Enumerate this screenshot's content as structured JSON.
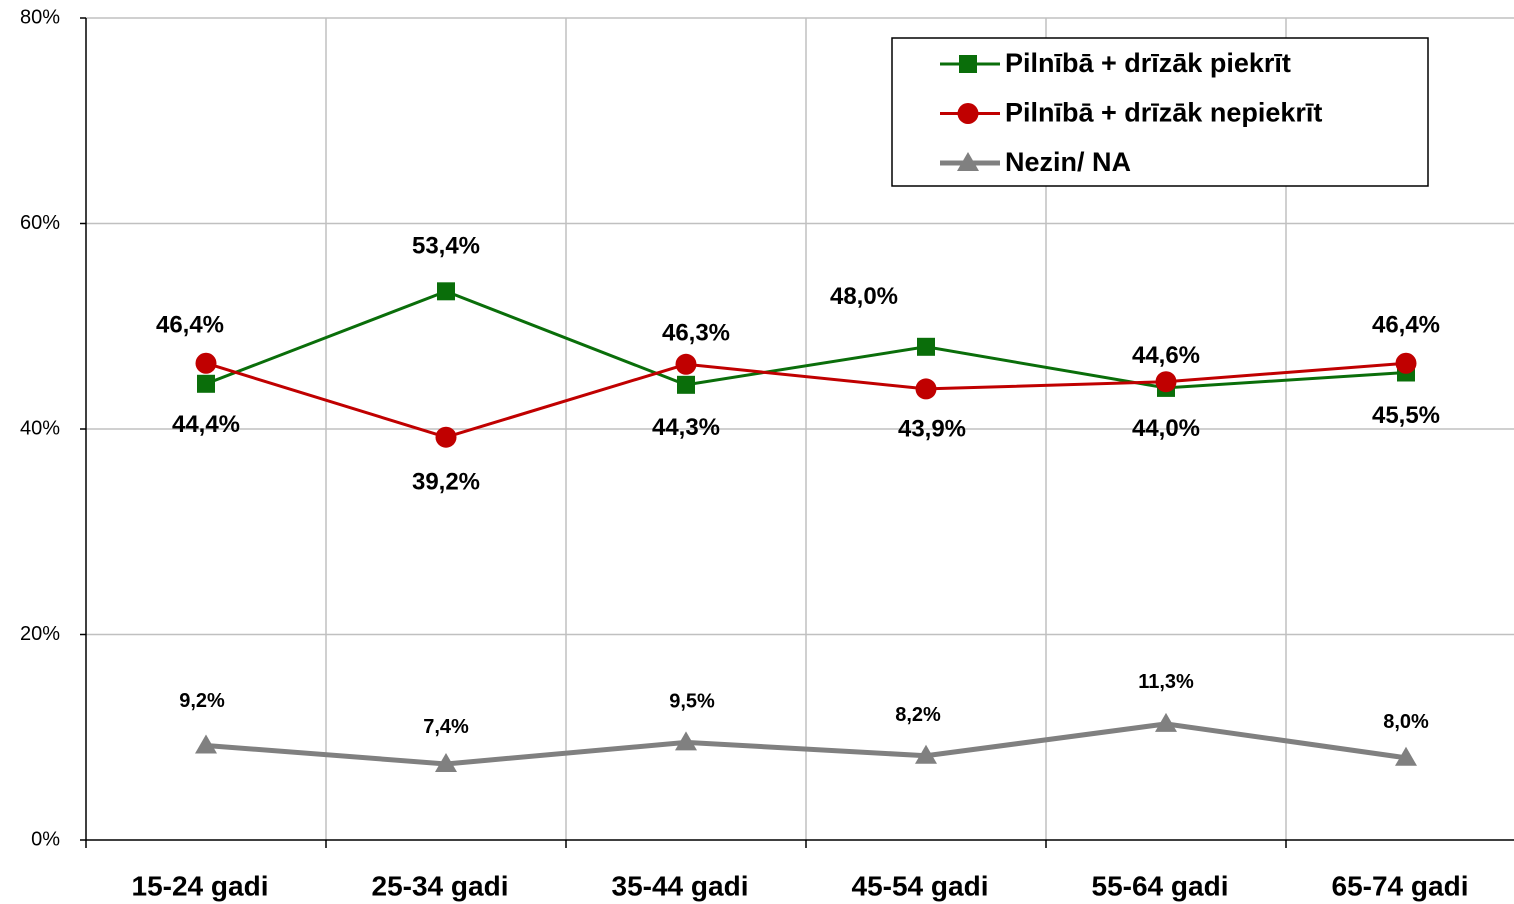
{
  "chart_data": {
    "type": "line",
    "categories": [
      "15-24 gadi",
      "25-34 gadi",
      "35-44 gadi",
      "45-54 gadi",
      "55-64 gadi",
      "65-74 gadi"
    ],
    "series": [
      {
        "name": "Pilnībā + drīzāk piekrīt",
        "color": "#0a6e0a",
        "marker": "square",
        "values": [
          44.4,
          53.4,
          44.3,
          48.0,
          44.0,
          45.5
        ],
        "value_labels": [
          "44,4%",
          "53,4%",
          "44,3%",
          "48,0%",
          "44,0%",
          "45,5%"
        ]
      },
      {
        "name": "Pilnībā + drīzāk nepiekrīt",
        "color": "#c00000",
        "marker": "circle",
        "values": [
          46.4,
          39.2,
          46.3,
          43.9,
          44.6,
          46.4
        ],
        "value_labels": [
          "46,4%",
          "39,2%",
          "46,3%",
          "43,9%",
          "44,6%",
          "46,4%"
        ]
      },
      {
        "name": "Nezin/ NA",
        "color": "#808080",
        "marker": "triangle",
        "values": [
          9.2,
          7.4,
          9.5,
          8.2,
          11.3,
          8.0
        ],
        "value_labels": [
          "9,2%",
          "7,4%",
          "9,5%",
          "8,2%",
          "11,3%",
          "8,0%"
        ]
      }
    ],
    "ylim": [
      0,
      80
    ],
    "yticks": [
      {
        "value": 0,
        "label": "0%"
      },
      {
        "value": 20,
        "label": "20%"
      },
      {
        "value": 40,
        "label": "40%"
      },
      {
        "value": 60,
        "label": "60%"
      },
      {
        "value": 80,
        "label": "80%"
      }
    ],
    "grid": true,
    "legend": "top-right"
  }
}
